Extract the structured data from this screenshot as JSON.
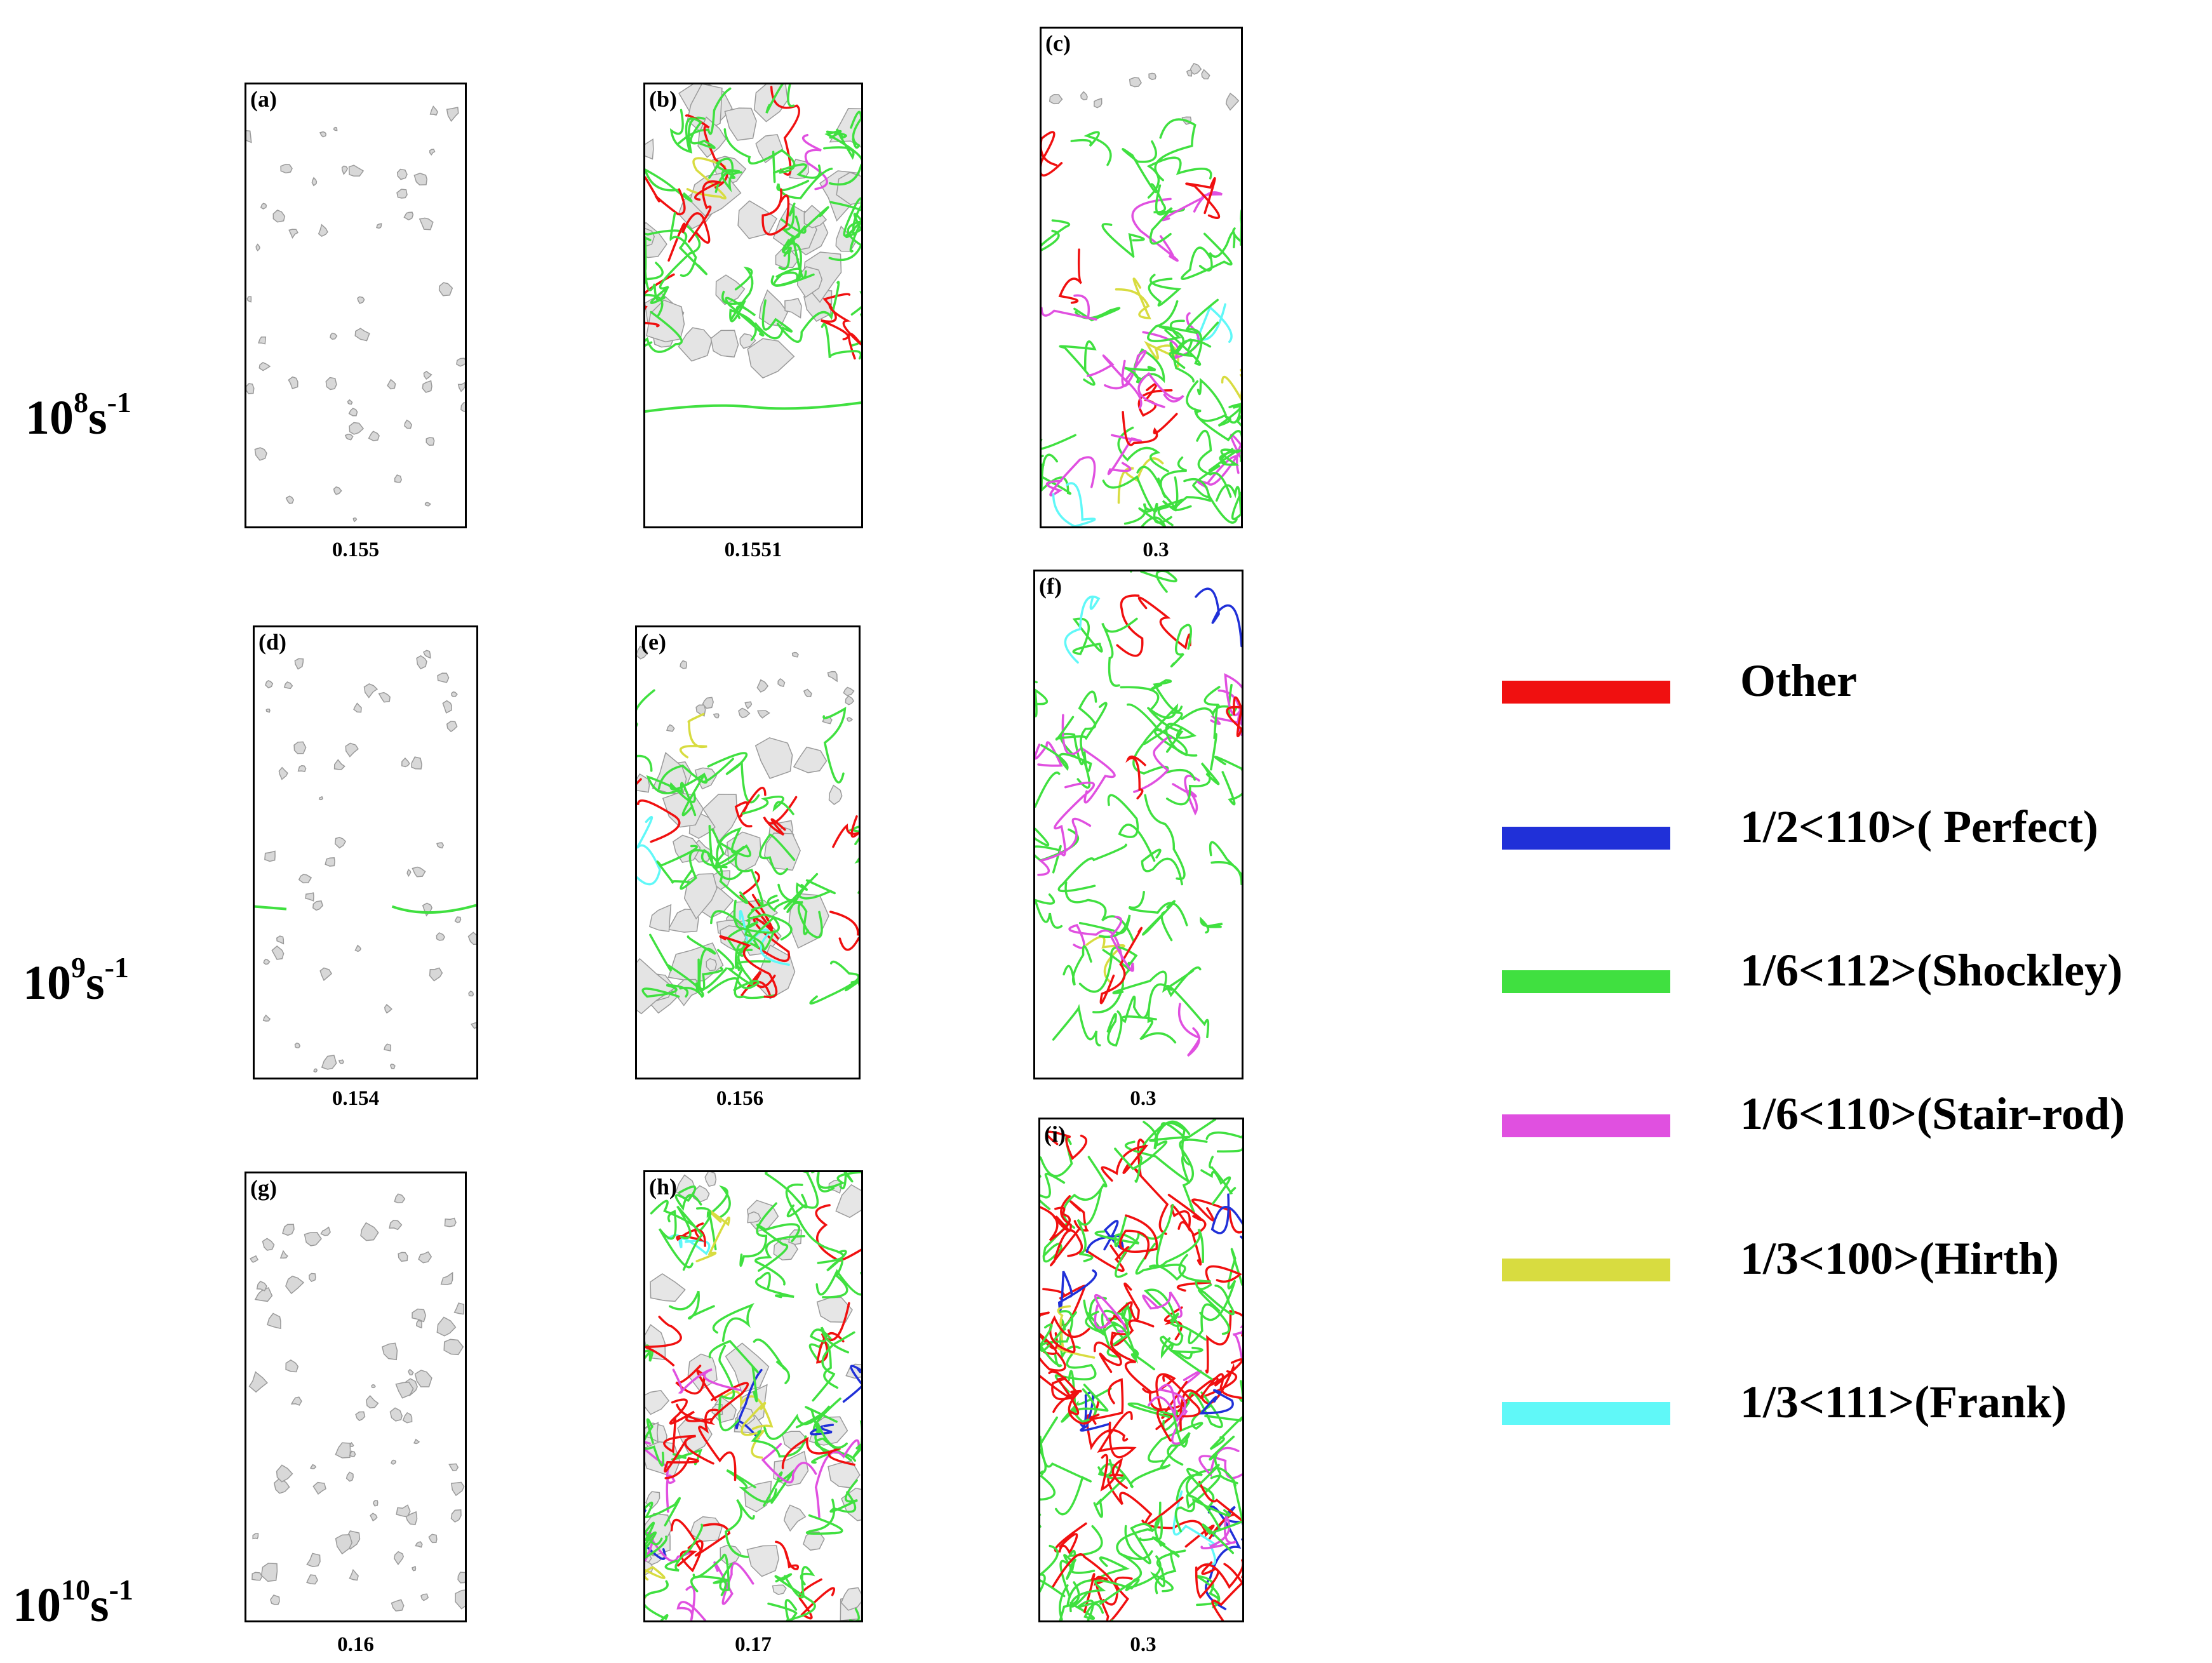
{
  "rows": [
    {
      "base": "10",
      "exp": "8",
      "unit": "s",
      "unit_exp": "-1"
    },
    {
      "base": "10",
      "exp": "9",
      "unit": "s",
      "unit_exp": "-1"
    },
    {
      "base": "10",
      "exp": "10",
      "unit": "s",
      "unit_exp": "-1"
    }
  ],
  "panels": [
    {
      "letter": "(a)",
      "strain": "0.155",
      "density": "sparse"
    },
    {
      "letter": "(b)",
      "strain": "0.1551",
      "density": "band-top"
    },
    {
      "letter": "(c)",
      "strain": "0.3",
      "density": "dense-mixed"
    },
    {
      "letter": "(d)",
      "strain": "0.154",
      "density": "sparse-line"
    },
    {
      "letter": "(e)",
      "strain": "0.156",
      "density": "band-mid"
    },
    {
      "letter": "(f)",
      "strain": "0.3",
      "density": "dense-mixed"
    },
    {
      "letter": "(g)",
      "strain": "0.16",
      "density": "sparse"
    },
    {
      "letter": "(h)",
      "strain": "0.17",
      "density": "dense-voids"
    },
    {
      "letter": "(i)",
      "strain": "0.3",
      "density": "very-dense"
    }
  ],
  "legend": [
    {
      "label": "Other",
      "color": "#f01010"
    },
    {
      "label": "1/2<110>( Perfect)",
      "color": "#2030d8"
    },
    {
      "label": "1/6<112>(Shockley)",
      "color": "#40e040"
    },
    {
      "label": "1/6<110>(Stair-rod)",
      "color": "#e050e0"
    },
    {
      "label": "1/3<100>(Hirth)",
      "color": "#d8dc40"
    },
    {
      "label": "1/3<111>(Frank)",
      "color": "#60f8f8"
    }
  ]
}
